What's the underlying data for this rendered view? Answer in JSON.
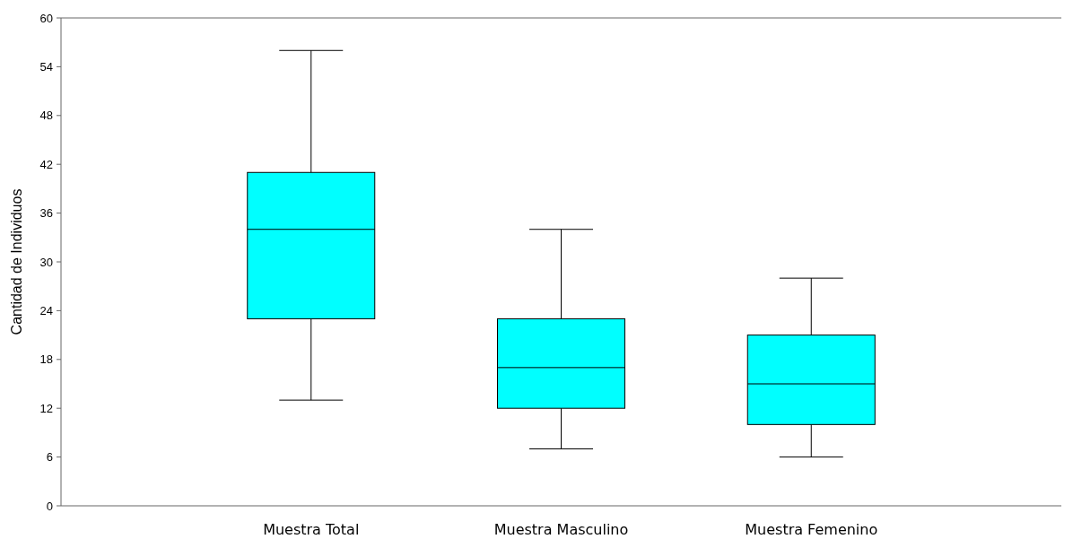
{
  "chart_data": {
    "type": "box",
    "ylabel": "Cantidad de Individuos",
    "categories": [
      "Muestra Total",
      "Muestra Masculino",
      "Muestra Femenino"
    ],
    "color": "#00ffff",
    "ylim": [
      0,
      60
    ],
    "yticks": [
      0,
      6,
      12,
      18,
      24,
      30,
      36,
      42,
      48,
      54,
      60
    ],
    "grid": false,
    "boxes": [
      {
        "low": 13,
        "q1": 23,
        "median": 34,
        "q3": 41,
        "high": 56
      },
      {
        "low": 7,
        "q1": 12,
        "median": 17,
        "q3": 23,
        "high": 34
      },
      {
        "low": 6,
        "q1": 10,
        "median": 15,
        "q3": 21,
        "high": 28
      }
    ]
  }
}
